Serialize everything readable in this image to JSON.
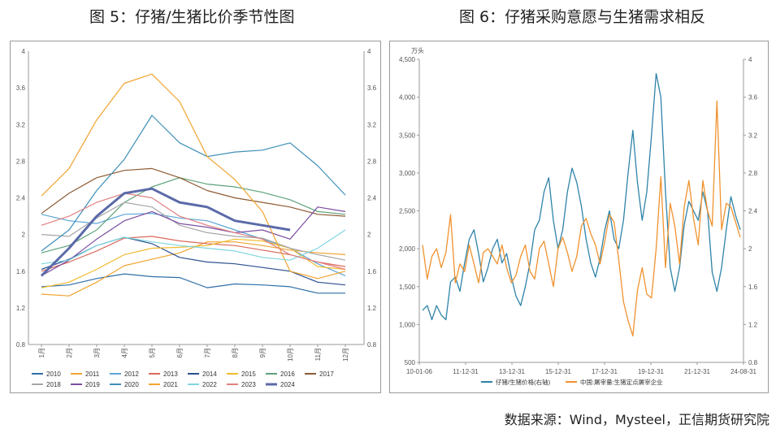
{
  "titles": {
    "left": "图 5：仔猪/生猪比价季节性图",
    "right": "图 6：仔猪采购意愿与生猪需求相反"
  },
  "source": "数据来源：Wind，Mysteel，正信期货研究院",
  "chart_data": [
    {
      "type": "line",
      "yticks": [
        "0.8",
        "1.2",
        "1.6",
        "2",
        "2.4",
        "2.8",
        "3.2",
        "3.6",
        "4"
      ],
      "ylim": [
        0.8,
        4
      ],
      "xticks": [
        "1月",
        "2月",
        "3月",
        "4月",
        "5月",
        "6月",
        "7月",
        "8月",
        "9月",
        "10月",
        "11月",
        "12月"
      ],
      "series": [
        {
          "name": "2010",
          "color": "#2f6fa8",
          "width": 1.2,
          "values": [
            1.43,
            1.45,
            1.52,
            1.57,
            1.54,
            1.53,
            1.42,
            1.46,
            1.45,
            1.43,
            1.36,
            1.36
          ]
        },
        {
          "name": "2011",
          "color": "#f0a431",
          "width": 1.2,
          "values": [
            1.35,
            1.33,
            1.48,
            1.66,
            1.73,
            1.8,
            1.92,
            1.92,
            1.88,
            1.83,
            1.8,
            1.78
          ]
        },
        {
          "name": "2012",
          "color": "#5aa6d6",
          "width": 1.2,
          "values": [
            2.22,
            2.15,
            2.12,
            2.22,
            2.23,
            2.18,
            2.15,
            2.05,
            1.95,
            1.85,
            1.68,
            1.55
          ]
        },
        {
          "name": "2013",
          "color": "#d96a5c",
          "width": 1.2,
          "values": [
            1.6,
            1.7,
            1.82,
            1.96,
            1.98,
            1.93,
            1.9,
            1.88,
            1.83,
            1.78,
            1.7,
            1.65
          ]
        },
        {
          "name": "2014",
          "color": "#2b4f8f",
          "width": 1.2,
          "values": [
            1.62,
            1.73,
            1.88,
            1.97,
            1.9,
            1.75,
            1.7,
            1.68,
            1.64,
            1.6,
            1.48,
            1.45
          ]
        },
        {
          "name": "2015",
          "color": "#f2bb2f",
          "width": 1.2,
          "values": [
            1.42,
            1.48,
            1.62,
            1.78,
            1.85,
            1.86,
            1.88,
            1.95,
            1.93,
            1.85,
            1.65,
            1.62
          ]
        },
        {
          "name": "2016",
          "color": "#5ea27a",
          "width": 1.2,
          "values": [
            1.8,
            1.88,
            2.05,
            2.35,
            2.52,
            2.62,
            2.55,
            2.52,
            2.46,
            2.38,
            2.25,
            2.22
          ]
        },
        {
          "name": "2017",
          "color": "#8d5b34",
          "width": 1.2,
          "values": [
            2.23,
            2.45,
            2.62,
            2.7,
            2.72,
            2.62,
            2.48,
            2.4,
            2.35,
            2.3,
            2.22,
            2.2
          ]
        },
        {
          "name": "2018",
          "color": "#a6a6a6",
          "width": 1.2,
          "values": [
            2.0,
            1.98,
            2.18,
            2.35,
            2.3,
            2.1,
            2.02,
            1.98,
            1.96,
            1.85,
            1.78,
            1.72
          ]
        },
        {
          "name": "2019",
          "color": "#7b4ea2",
          "width": 1.2,
          "values": [
            1.55,
            1.72,
            1.95,
            2.15,
            2.25,
            2.12,
            2.08,
            2.02,
            2.05,
            1.95,
            2.3,
            2.25
          ]
        },
        {
          "name": "2020",
          "color": "#3e8fb8",
          "width": 1.2,
          "values": [
            1.82,
            2.05,
            2.48,
            2.82,
            3.3,
            3.0,
            2.85,
            2.9,
            2.92,
            3.0,
            2.75,
            2.43
          ]
        },
        {
          "name": "2021",
          "color": "#f0a431",
          "width": 1.2,
          "values": [
            2.42,
            2.72,
            3.25,
            3.65,
            3.75,
            3.45,
            2.85,
            2.6,
            2.25,
            1.6,
            1.52,
            1.6
          ]
        },
        {
          "name": "2022",
          "color": "#7ed6df",
          "width": 1.2,
          "values": [
            1.68,
            1.72,
            1.88,
            1.97,
            1.92,
            1.88,
            1.85,
            1.82,
            1.75,
            1.72,
            1.85,
            2.05
          ]
        },
        {
          "name": "2023",
          "color": "#e08080",
          "width": 1.2,
          "values": [
            2.1,
            2.2,
            2.35,
            2.45,
            2.4,
            2.2,
            2.1,
            2.02,
            1.95,
            1.78,
            1.7,
            1.62
          ]
        },
        {
          "name": "2024",
          "color": "#5b6aa8",
          "width": 3,
          "values": [
            1.55,
            1.85,
            2.2,
            2.45,
            2.5,
            2.35,
            2.3,
            2.15,
            2.1,
            2.05
          ]
        }
      ]
    },
    {
      "type": "line",
      "yunit": "万头",
      "yleft_ticks": [
        "500",
        "1,000",
        "1,500",
        "2,000",
        "2,500",
        "3,000",
        "3,500",
        "4,000",
        "4,500"
      ],
      "yleft_lim": [
        500,
        4500
      ],
      "yright_ticks": [
        "0.8",
        "1.2",
        "1.6",
        "2",
        "2.4",
        "2.8",
        "3.2",
        "3.6",
        "4"
      ],
      "yright_lim": [
        0.8,
        4
      ],
      "xticks": [
        "10-01-06",
        "11-12-31",
        "13-12-31",
        "15-12-31",
        "17-12-31",
        "19-12-31",
        "21-12-31",
        "24-08-31"
      ],
      "series": [
        {
          "name": "仔猪/生猪价格(右轴)",
          "color": "#2e83a8",
          "axis": "right",
          "values": [
            1.35,
            1.4,
            1.25,
            1.4,
            1.3,
            1.25,
            1.65,
            1.7,
            1.55,
            1.85,
            2.1,
            2.2,
            1.95,
            1.65,
            1.8,
            2.0,
            2.1,
            1.85,
            1.95,
            1.7,
            1.5,
            1.4,
            1.6,
            1.85,
            2.2,
            2.3,
            2.6,
            2.75,
            2.3,
            2.0,
            2.2,
            2.6,
            2.85,
            2.7,
            2.45,
            2.1,
            1.85,
            1.7,
            1.9,
            2.2,
            2.4,
            2.1,
            2.0,
            2.3,
            2.8,
            3.25,
            2.7,
            2.3,
            2.6,
            3.2,
            3.85,
            3.6,
            2.6,
            1.8,
            1.55,
            1.8,
            2.25,
            2.5,
            2.4,
            2.3,
            2.6,
            2.4,
            1.75,
            1.55,
            1.8,
            2.2,
            2.55,
            2.35,
            2.2
          ]
        },
        {
          "name": "中国:屠宰量:生猪定点屠宰企业",
          "color": "#f0922e",
          "axis": "left",
          "values": [
            2050,
            1600,
            1900,
            2000,
            1750,
            1950,
            2450,
            1550,
            1800,
            1700,
            2050,
            1800,
            1550,
            1950,
            2000,
            1900,
            1800,
            2050,
            1750,
            1550,
            1650,
            1900,
            2050,
            1700,
            1600,
            2000,
            2100,
            1800,
            1500,
            2000,
            2150,
            1950,
            1700,
            1900,
            2300,
            2400,
            2200,
            2050,
            1800,
            2100,
            2450,
            2350,
            1850,
            1300,
            1050,
            850,
            1450,
            1750,
            1400,
            1350,
            2000,
            2950,
            1750,
            2600,
            2300,
            1800,
            2550,
            2900,
            2400,
            2050,
            2900,
            2500,
            2300,
            3950,
            2250,
            2600,
            2550,
            2350,
            2150
          ]
        }
      ]
    }
  ]
}
